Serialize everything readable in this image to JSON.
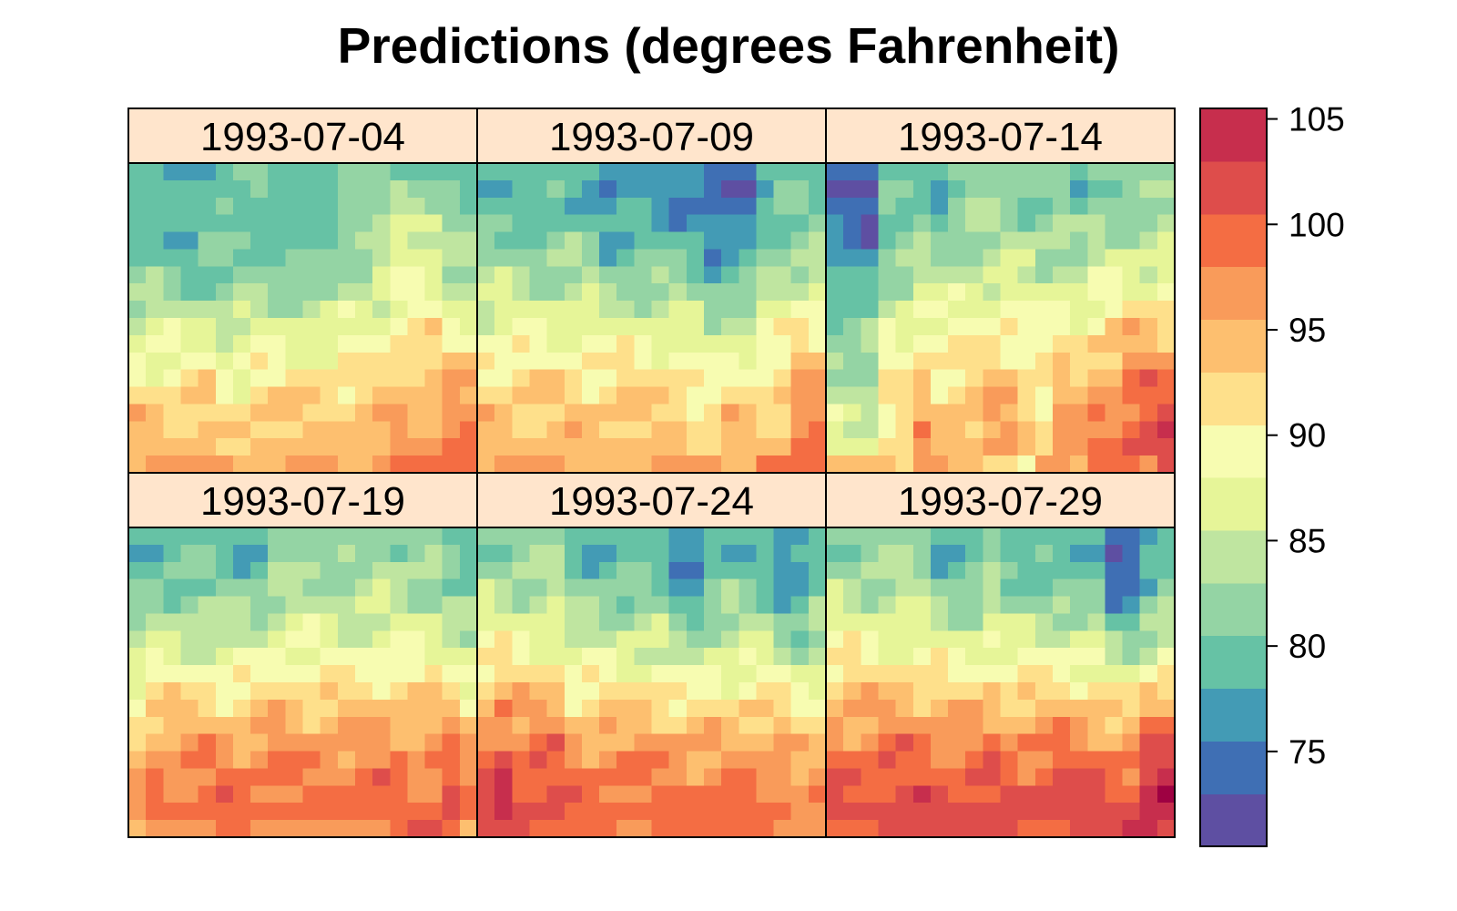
{
  "chart_data": {
    "type": "heatmap",
    "title": "Predictions (degrees Fahrenheit)",
    "xlabel": "",
    "ylabel": "",
    "grid": false,
    "legend": "right",
    "layout": {
      "columns": 3,
      "rows": 2
    },
    "panels": [
      "1993-07-04",
      "1993-07-09",
      "1993-07-14",
      "1993-07-19",
      "1993-07-24",
      "1993-07-29"
    ],
    "colorbar": {
      "breaks": [
        70.5,
        73,
        75.5,
        78,
        80.5,
        83,
        85.5,
        88,
        90.5,
        93,
        95.5,
        98,
        100.5,
        103,
        105.5
      ],
      "colors": [
        "#5E4FA2",
        "#3F6FB4",
        "#439BB5",
        "#66C2A5",
        "#94D4A4",
        "#BFE5A0",
        "#E6F598",
        "#F7FCB1",
        "#FEE08B",
        "#FDBF6F",
        "#F99B5A",
        "#F46D43",
        "#DE4D4B",
        "#C72E4D",
        "#9E0142"
      ],
      "ticks": [
        75,
        80,
        85,
        90,
        95,
        100,
        105
      ],
      "range": [
        70.5,
        105.5
      ]
    },
    "grid_size": {
      "columns": 20,
      "rows": 18
    },
    "panel_profiles": [
      {
        "top": 79,
        "rows": [
          [
            79,
            79,
            76,
            76,
            76,
            78,
            81,
            81,
            79,
            79,
            79,
            79,
            81,
            82,
            82,
            79,
            79,
            79,
            79,
            79
          ],
          [
            79,
            78,
            78,
            78,
            78,
            78,
            78,
            81,
            80,
            80,
            80,
            80,
            81,
            82,
            82,
            84,
            82,
            82,
            82,
            79
          ],
          [
            78,
            78,
            78,
            78,
            78,
            81,
            80,
            80,
            80,
            80,
            80,
            80,
            82,
            82,
            82,
            84,
            84,
            82,
            82,
            80
          ],
          [
            79,
            79,
            79,
            79,
            79,
            79,
            80,
            80,
            80,
            79,
            79,
            79,
            82,
            82,
            84,
            86,
            86,
            86,
            82,
            82
          ]
        ],
        "bottom": [
          [
            94,
            94,
            94,
            94,
            94,
            92,
            92,
            94,
            94,
            94,
            94,
            94,
            94,
            94,
            94,
            96,
            96,
            96,
            98,
            98
          ],
          [
            94,
            96,
            96,
            96,
            96,
            96,
            94,
            94,
            94,
            96,
            96,
            96,
            94,
            94,
            96,
            98,
            99,
            99,
            98,
            98
          ]
        ]
      },
      {
        "top": 78,
        "rows": [
          [
            79,
            79,
            79,
            78,
            78,
            78,
            78,
            76,
            76,
            76,
            76,
            76,
            76,
            73,
            73,
            73,
            78,
            79,
            79,
            79
          ]
        ],
        "bottom": [
          [
            94,
            94,
            94,
            94,
            94,
            94,
            94,
            94,
            94,
            94,
            94,
            94,
            92,
            92,
            94,
            94,
            94,
            94,
            98,
            98
          ],
          [
            94,
            96,
            96,
            96,
            96,
            94,
            94,
            94,
            94,
            94,
            96,
            96,
            96,
            96,
            94,
            94,
            98,
            98,
            98,
            98
          ]
        ]
      },
      {
        "top": 78,
        "rows": [
          [
            73,
            73,
            73,
            79,
            79,
            79,
            79,
            81,
            81,
            81,
            81,
            81,
            81,
            81,
            79,
            81,
            81,
            81,
            81,
            82
          ]
        ],
        "bottom": [
          [
            86,
            86,
            86,
            92,
            92,
            96,
            94,
            94,
            94,
            96,
            96,
            94,
            92,
            96,
            96,
            98,
            99,
            101,
            101,
            101
          ],
          [
            94,
            94,
            94,
            94,
            92,
            96,
            96,
            94,
            94,
            92,
            92,
            90,
            96,
            96,
            94,
            98,
            98,
            98,
            96,
            101
          ]
        ]
      },
      {
        "top": 78,
        "rows": [
          [
            78,
            79,
            79,
            79,
            79,
            79,
            79,
            79,
            82,
            82,
            82,
            82,
            82,
            82,
            82,
            82,
            82,
            82,
            79,
            78
          ]
        ],
        "bottom": [
          [
            96,
            99,
            99,
            99,
            99,
            99,
            99,
            99,
            99,
            99,
            99,
            99,
            99,
            99,
            99,
            99,
            99,
            99,
            101,
            98
          ],
          [
            94,
            96,
            96,
            96,
            96,
            98,
            98,
            96,
            96,
            96,
            96,
            96,
            96,
            96,
            96,
            98,
            101,
            101,
            98,
            94
          ]
        ]
      },
      {
        "top": 81,
        "rows": [
          [
            82,
            82,
            82,
            82,
            82,
            79,
            79,
            79,
            79,
            79,
            78,
            76,
            76,
            79,
            79,
            79,
            79,
            76,
            76,
            78
          ]
        ],
        "bottom": [
          [
            101,
            104,
            101,
            101,
            101,
            99,
            99,
            99,
            99,
            99,
            99,
            99,
            98,
            98,
            98,
            99,
            99,
            99,
            96,
            96
          ],
          [
            101,
            101,
            101,
            98,
            98,
            98,
            98,
            98,
            96,
            96,
            98,
            98,
            98,
            98,
            98,
            98,
            98,
            96,
            96,
            96
          ]
        ]
      },
      {
        "top": 84,
        "rows": [
          [
            82,
            82,
            82,
            82,
            82,
            82,
            79,
            79,
            79,
            82,
            79,
            79,
            79,
            79,
            78,
            78,
            73,
            73,
            76,
            78
          ]
        ],
        "bottom": [
          [
            101,
            101,
            101,
            101,
            101,
            101,
            101,
            101,
            101,
            101,
            101,
            101,
            101,
            101,
            101,
            101,
            101,
            101,
            104,
            104
          ],
          [
            99,
            99,
            99,
            101,
            101,
            101,
            101,
            101,
            101,
            101,
            101,
            98,
            99,
            99,
            101,
            101,
            101,
            104,
            104,
            101
          ]
        ]
      }
    ]
  }
}
